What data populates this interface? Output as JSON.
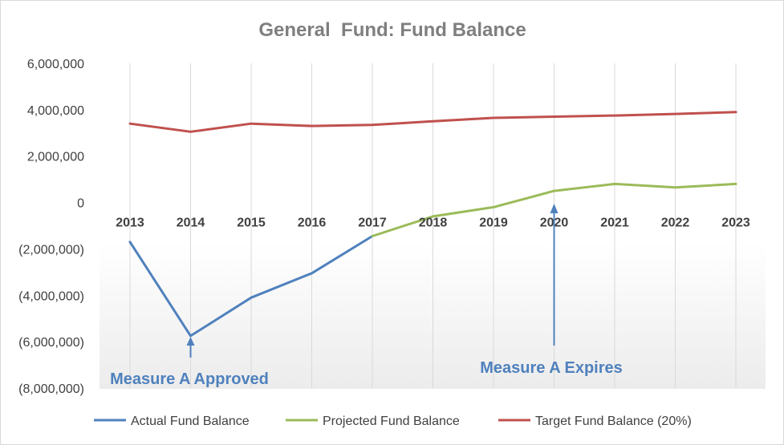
{
  "chart_data": {
    "type": "line",
    "title": "General  Fund: Fund Balance",
    "xlabel": "",
    "ylabel": "",
    "ylim": [
      -8000000,
      6000000
    ],
    "yticks": [
      6000000,
      4000000,
      2000000,
      0,
      -2000000,
      -4000000,
      -6000000,
      -8000000
    ],
    "ytick_labels": [
      "6,000,000",
      "4,000,000",
      "2,000,000",
      "0",
      "(2,000,000)",
      "(4,000,000)",
      "(6,000,000)",
      "(8,000,000)"
    ],
    "categories": [
      "2013",
      "2014",
      "2015",
      "2016",
      "2017",
      "2018",
      "2019",
      "2020",
      "2021",
      "2022",
      "2023"
    ],
    "grid": "vertical",
    "legend_position": "bottom",
    "series": [
      {
        "name": "Actual Fund Balance",
        "color": "#4f81bd",
        "values": [
          -1700000,
          -5750000,
          -4100000,
          -3050000,
          -1450000,
          null,
          null,
          null,
          null,
          null,
          null
        ]
      },
      {
        "name": "Projected Fund Balance",
        "color": "#9bbb59",
        "values": [
          null,
          null,
          null,
          null,
          -1450000,
          -600000,
          -200000,
          500000,
          800000,
          650000,
          800000
        ]
      },
      {
        "name": "Target Fund Balance (20%)",
        "color": "#c0504d",
        "values": [
          3400000,
          3050000,
          3400000,
          3300000,
          3350000,
          3500000,
          3650000,
          3700000,
          3750000,
          3820000,
          3900000
        ]
      }
    ],
    "annotations": [
      {
        "text": "Measure A Approved",
        "category": "2014",
        "color": "#4f81bd"
      },
      {
        "text": "Measure A Expires",
        "category": "2020",
        "color": "#4f81bd"
      }
    ]
  }
}
